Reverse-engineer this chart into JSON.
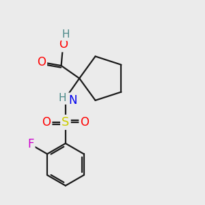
{
  "bg_color": "#ebebeb",
  "bond_color": "#1a1a1a",
  "bond_width": 1.6,
  "atom_colors": {
    "O": "#ff0000",
    "N": "#0000ee",
    "S": "#cccc00",
    "F": "#cc00cc",
    "H_gray": "#4a8888",
    "C": "#1a1a1a"
  },
  "font_size": 11,
  "fig_size": [
    3.0,
    3.0
  ]
}
